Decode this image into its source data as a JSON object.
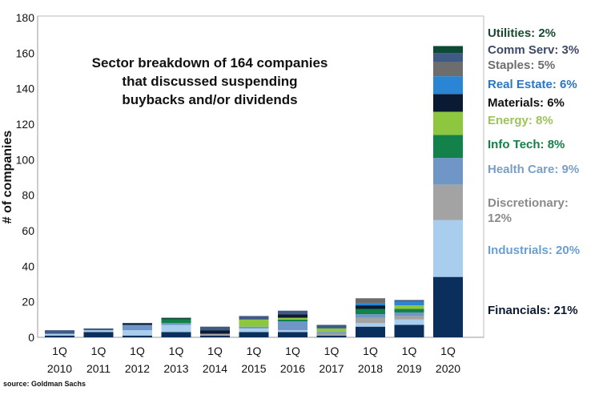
{
  "chart_data": {
    "type": "bar",
    "stacked": true,
    "title": "Sector breakdown of 164 companies that discussed suspending buybacks and/or dividends",
    "title_lines": [
      "Sector breakdown of 164 companies",
      "that discussed suspending",
      "buybacks and/or dividends"
    ],
    "ylabel": "# of companies",
    "xlabel": "",
    "ylim": [
      0,
      180
    ],
    "yticks": [
      0,
      20,
      40,
      60,
      80,
      100,
      120,
      140,
      160,
      180
    ],
    "grid": false,
    "categories": [
      [
        "1Q",
        "2010"
      ],
      [
        "1Q",
        "2011"
      ],
      [
        "1Q",
        "2012"
      ],
      [
        "1Q",
        "2013"
      ],
      [
        "1Q",
        "2014"
      ],
      [
        "1Q",
        "2015"
      ],
      [
        "1Q",
        "2016"
      ],
      [
        "1Q",
        "2017"
      ],
      [
        "1Q",
        "2018"
      ],
      [
        "1Q",
        "2019"
      ],
      [
        "1Q",
        "2020"
      ]
    ],
    "series": [
      {
        "name": "Financials",
        "color": "#0b2f5c",
        "label": "Financials: 21%",
        "label_color": "#0b1a33",
        "values": [
          1,
          3,
          1,
          3,
          1,
          3,
          3,
          1,
          6,
          7,
          34
        ]
      },
      {
        "name": "Industrials",
        "color": "#a9cdec",
        "label": "Industrials:  20%",
        "label_color": "#6a9fd0",
        "values": [
          1,
          1,
          3,
          4,
          0,
          2,
          1,
          0,
          2,
          3,
          32
        ]
      },
      {
        "name": "Discretionary",
        "color": "#a3a3a3",
        "label": "Discretionary: 12%",
        "label_color": "#8a8a8a",
        "values": [
          0,
          0,
          0,
          0,
          1,
          0,
          0,
          1,
          3,
          2,
          20
        ]
      },
      {
        "name": "Health Care",
        "color": "#6f96c6",
        "label": "Health Care: 9%",
        "label_color": "#7a9ec8",
        "values": [
          0,
          0,
          3,
          1,
          0,
          1,
          5,
          1,
          2,
          2,
          15
        ]
      },
      {
        "name": "Info Tech",
        "color": "#12824a",
        "label": "Info Tech: 8%",
        "label_color": "#138046",
        "values": [
          0,
          0,
          0,
          2,
          0,
          0,
          1,
          0,
          3,
          2,
          13
        ]
      },
      {
        "name": "Energy",
        "color": "#8dc63f",
        "label": "Energy: 8%",
        "label_color": "#9cc45a",
        "values": [
          0,
          0,
          0,
          0,
          0,
          4,
          1,
          2,
          0,
          2,
          13
        ]
      },
      {
        "name": "Materials",
        "color": "#0b1a33",
        "label": "Materials: 6%",
        "label_color": "#111111",
        "values": [
          0,
          0,
          1,
          0,
          2,
          0,
          2,
          0,
          2,
          0,
          10
        ]
      },
      {
        "name": "Real Estate",
        "color": "#2a86d4",
        "label": "Real Estate:  6%",
        "label_color": "#2a76c4",
        "values": [
          0,
          0,
          0,
          0,
          0,
          0,
          0,
          0,
          1,
          2,
          10
        ]
      },
      {
        "name": "Staples",
        "color": "#6d6d6d",
        "label": "Staples: 5%",
        "label_color": "#6d6d6d",
        "values": [
          0,
          0,
          0,
          0,
          0,
          0,
          0,
          0,
          3,
          0,
          8
        ]
      },
      {
        "name": "Comm Serv",
        "color": "#3f5a85",
        "label": "Comm Serv: 3%",
        "label_color": "#3d4a66",
        "values": [
          2,
          1,
          0,
          0,
          2,
          2,
          2,
          2,
          0,
          1,
          5
        ]
      },
      {
        "name": "Utilities",
        "color": "#0d4a36",
        "label": "Utilities: 2%",
        "label_color": "#1a4a30",
        "values": [
          0,
          0,
          0,
          1,
          0,
          0,
          0,
          0,
          0,
          0,
          4
        ]
      }
    ],
    "source": "source: Goldman Sachs"
  }
}
